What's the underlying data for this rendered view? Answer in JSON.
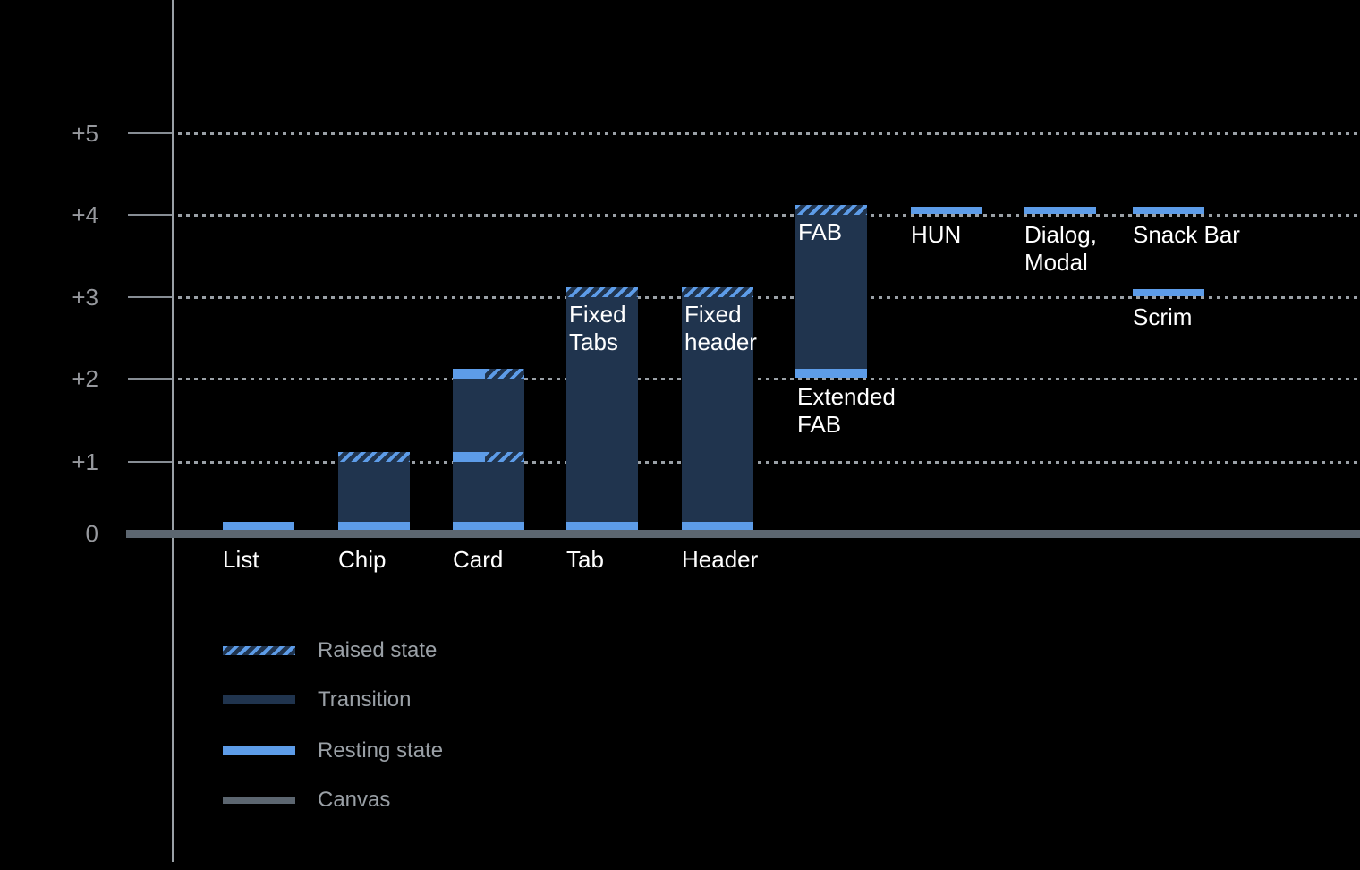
{
  "chart_data": {
    "type": "bar",
    "description": "Elevation levels of UI components; bars show transition range between resting and raised states above the canvas.",
    "y_axis": {
      "tick_labels": [
        "+5",
        "+4",
        "+3",
        "+2",
        "+1",
        "0"
      ],
      "tick_values": [
        5,
        4,
        3,
        2,
        1,
        0
      ],
      "range": [
        0,
        5
      ],
      "grid": "dotted horizontal line at each level"
    },
    "components": [
      {
        "id": "list",
        "label": "List",
        "resting": 0
      },
      {
        "id": "chip",
        "label": "Chip",
        "bar": [
          0,
          1
        ],
        "resting": 0,
        "raised": 1
      },
      {
        "id": "card",
        "label": "Card",
        "bar": [
          0,
          2
        ],
        "resting": 0,
        "resting_raised_levels": [
          1,
          2
        ]
      },
      {
        "id": "tab",
        "label": "Tab",
        "bar": [
          0,
          3
        ],
        "resting": 0,
        "raised": 3,
        "inner_label": "Fixed\nTabs"
      },
      {
        "id": "header",
        "label": "Header",
        "bar": [
          0,
          3
        ],
        "resting": 0,
        "raised": 3,
        "inner_label": "Fixed\nheader"
      },
      {
        "id": "extended-fab",
        "label": "Extended\nFAB",
        "bar": [
          2,
          4
        ],
        "resting": 2,
        "raised": 4,
        "inner_label": "FAB",
        "label_position": "below"
      },
      {
        "id": "hun",
        "label": "HUN",
        "resting": 4
      },
      {
        "id": "dialog-modal",
        "label": "Dialog,\nModal",
        "resting": 4
      },
      {
        "id": "snack-bar",
        "label": "Snack Bar",
        "resting": 4
      },
      {
        "id": "scrim",
        "label": "Scrim",
        "resting": 3
      }
    ],
    "legend": [
      {
        "id": "raised-state",
        "label": "Raised state",
        "style": "raised"
      },
      {
        "id": "transition",
        "label": "Transition",
        "style": "transition"
      },
      {
        "id": "resting-state",
        "label": "Resting state",
        "style": "resting"
      },
      {
        "id": "canvas",
        "label": "Canvas",
        "style": "canvas"
      }
    ],
    "legend_position": "bottom-left"
  },
  "colors": {
    "background": "#000000",
    "resting_state_blue": "#5d9ce8",
    "transition_navy": "#20344e",
    "canvas_gray": "#5c6670",
    "grid_dots": "#9aa0a6",
    "axis_line": "#9aa0a6",
    "tick_line": "#878d94",
    "tick_label": "#97999e",
    "component_label": "#ffffff",
    "legend_label": "#9aa0a6"
  }
}
